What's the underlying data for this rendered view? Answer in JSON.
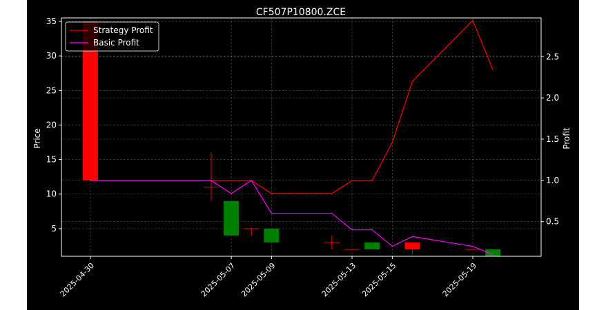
{
  "chart_data": {
    "type": "candlestick",
    "title": "CF507P10800.ZCE",
    "ylabel_left": "Price",
    "ylabel_right": "Profit",
    "xlabel": "",
    "x_tick_labels": [
      "2025-04-30",
      "2025-05-07",
      "2025-05-09",
      "2025-05-13",
      "2025-05-15",
      "2025-05-19"
    ],
    "y_left_ticks": [
      5,
      10,
      15,
      20,
      25,
      30,
      35
    ],
    "y_right_ticks": [
      0.5,
      1.0,
      1.5,
      2.0,
      2.5
    ],
    "y_left_range": [
      1,
      35.5
    ],
    "y_right_range": [
      0.08,
      2.97
    ],
    "grid": true,
    "legend_position": "top-left",
    "up_color": "#008000",
    "down_color": "#ff0000",
    "candles": [
      {
        "date": "2025-04-30",
        "open": 35.0,
        "high": 35.0,
        "low": 12.0,
        "close": 12.0
      },
      {
        "date": "2025-05-06",
        "open": 11.0,
        "high": 16.0,
        "low": 9.0,
        "close": 11.0
      },
      {
        "date": "2025-05-07",
        "open": 4.0,
        "high": 9.0,
        "low": 4.0,
        "close": 9.0
      },
      {
        "date": "2025-05-08",
        "open": 5.0,
        "high": 5.0,
        "low": 4.0,
        "close": 5.0
      },
      {
        "date": "2025-05-09",
        "open": 3.0,
        "high": 5.0,
        "low": 3.0,
        "close": 5.0
      },
      {
        "date": "2025-05-12",
        "open": 3.0,
        "high": 4.0,
        "low": 2.0,
        "close": 3.0
      },
      {
        "date": "2025-05-13",
        "open": 2.0,
        "high": 2.0,
        "low": 2.0,
        "close": 2.0
      },
      {
        "date": "2025-05-14",
        "open": 2.0,
        "high": 3.0,
        "low": 2.0,
        "close": 3.0
      },
      {
        "date": "2025-05-16",
        "open": 3.0,
        "high": 3.0,
        "low": 1.3,
        "close": 2.0
      },
      {
        "date": "2025-05-19",
        "open": 2.0,
        "high": 2.0,
        "low": 2.0,
        "close": 2.0
      },
      {
        "date": "2025-05-20",
        "open": 1.0,
        "high": 2.0,
        "low": 1.0,
        "close": 2.0
      }
    ],
    "series": [
      {
        "name": "Strategy Profit",
        "color": "#ff0000",
        "dates": [
          "2025-04-30",
          "2025-05-06",
          "2025-05-07",
          "2025-05-08",
          "2025-05-09",
          "2025-05-12",
          "2025-05-13",
          "2025-05-14",
          "2025-05-15",
          "2025-05-16",
          "2025-05-19",
          "2025-05-20"
        ],
        "values": [
          1.0,
          1.0,
          1.0,
          1.0,
          0.84,
          0.84,
          1.0,
          1.0,
          1.46,
          2.2,
          2.94,
          2.34
        ]
      },
      {
        "name": "Basic Profit",
        "color": "#ff00ff",
        "dates": [
          "2025-04-30",
          "2025-05-06",
          "2025-05-07",
          "2025-05-08",
          "2025-05-09",
          "2025-05-12",
          "2025-05-13",
          "2025-05-14",
          "2025-05-15",
          "2025-05-16",
          "2025-05-19",
          "2025-05-20"
        ],
        "values": [
          1.0,
          1.0,
          0.84,
          1.0,
          0.6,
          0.6,
          0.4,
          0.4,
          0.2,
          0.32,
          0.2,
          0.1
        ]
      }
    ]
  }
}
